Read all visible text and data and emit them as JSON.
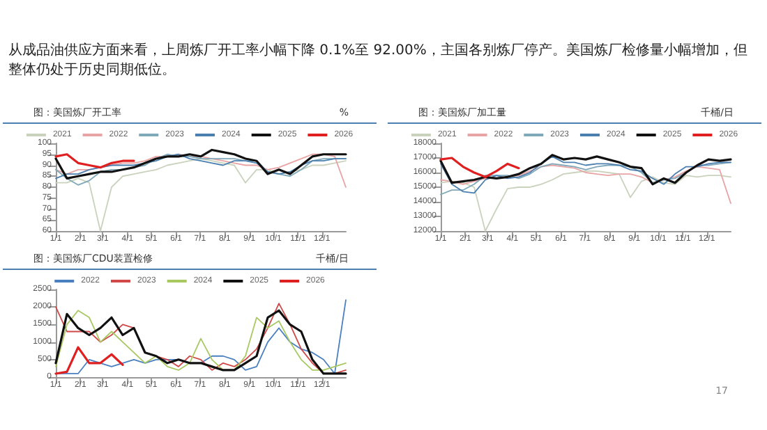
{
  "chart_data": [
    {
      "type": "line",
      "title": "图：美国炼厂开工率",
      "ylabel": "%",
      "annotations": [
        "从成品油供应方面来看，上周炼厂开工率小幅下降 0.1%至 92.00%，主国各别炼厂停产。美国炼厂检修量小幅增加，但整体仍处于历史同期低位。"
      ],
      "x": [
        "--01-01",
        "--01-15",
        "--01-29",
        "--02-12",
        "--02-26",
        "--03-12",
        "--03-26",
        "--04-09",
        "--04-23",
        "--05-07",
        "--05-21",
        "--06-04",
        "--06-18",
        "--07-02",
        "--07-16",
        "--07-30",
        "--08-13",
        "--08-27",
        "--09-10",
        "--09-24",
        "--10-08",
        "--10-22",
        "--11-05",
        "--11-19",
        "--12-03",
        "--12-17",
        "--12-31"
      ],
      "xlim": [
        "--01-01",
        "--12-31"
      ],
      "xticks": [
        {
          "value": "--01-01",
          "label": "1/1"
        },
        {
          "value": "--02-01",
          "label": "2/1"
        },
        {
          "value": "--03-01",
          "label": "3/1"
        },
        {
          "value": "--04-01",
          "label": "4/1"
        },
        {
          "value": "--05-01",
          "label": "5/1"
        },
        {
          "value": "--06-01",
          "label": "6/1"
        },
        {
          "value": "--07-01",
          "label": "7/1"
        },
        {
          "value": "--08-01",
          "label": "8/1"
        },
        {
          "value": "--09-01",
          "label": "9/1"
        },
        {
          "value": "--10-01",
          "label": "10/1"
        },
        {
          "value": "--11-01",
          "label": "11/1"
        },
        {
          "value": "--12-01",
          "label": "12/1"
        }
      ],
      "ylim": [
        60,
        100
      ],
      "yticks": [
        60,
        65,
        70,
        75,
        80,
        85,
        90,
        95,
        100
      ],
      "grid": false,
      "legend": "top",
      "marker": "none",
      "line_style": "solid",
      "series": [
        {
          "name": "2021",
          "color": "#c9d2bc",
          "values": [
            82,
            82,
            84,
            82,
            60,
            80,
            85,
            86,
            87,
            88,
            90,
            91,
            92,
            93,
            92,
            91,
            90,
            82,
            88,
            88,
            86,
            87,
            88,
            90,
            90,
            91,
            92
          ]
        },
        {
          "name": "2022",
          "color": "#e8a4a4",
          "values": [
            88,
            86,
            88,
            88,
            89,
            90,
            91,
            91,
            92,
            94,
            94,
            95,
            94,
            94,
            93,
            92,
            91,
            90,
            90,
            88,
            89,
            91,
            93,
            95,
            95,
            94,
            80
          ]
        },
        {
          "name": "2023",
          "color": "#7fa8b8",
          "values": [
            88,
            84,
            81,
            83,
            87,
            88,
            88,
            89,
            90,
            93,
            95,
            94,
            94,
            93,
            93,
            93,
            93,
            92,
            92,
            87,
            86,
            85,
            88,
            92,
            93,
            93,
            93
          ]
        },
        {
          "name": "2024",
          "color": "#4a7fb0",
          "values": [
            84,
            86,
            86,
            88,
            89,
            90,
            90,
            90,
            91,
            92,
            94,
            95,
            93,
            92,
            91,
            90,
            92,
            92,
            91,
            87,
            86,
            87,
            90,
            92,
            92,
            93,
            93
          ]
        },
        {
          "name": "2025",
          "color": "#111111",
          "values": [
            93,
            84,
            85,
            86,
            87,
            87,
            88,
            89,
            91,
            93,
            94,
            94,
            95,
            94,
            97,
            96,
            95,
            93,
            92,
            86,
            88,
            86,
            90,
            94,
            95,
            95,
            95
          ]
        },
        {
          "name": "2026",
          "color": "#e02020",
          "x": [
            "--01-01",
            "--01-15",
            "--01-29",
            "--02-12",
            "--02-26",
            "--03-12",
            "--03-26",
            "--04-09"
          ],
          "values": [
            94,
            95,
            91,
            90,
            89,
            91,
            92,
            92
          ]
        }
      ]
    },
    {
      "type": "line",
      "title": "图：美国炼厂加工量",
      "ylabel": "千桶/日",
      "x": [
        "--01-01",
        "--01-15",
        "--01-29",
        "--02-12",
        "--02-26",
        "--03-12",
        "--03-26",
        "--04-09",
        "--04-23",
        "--05-07",
        "--05-21",
        "--06-04",
        "--06-18",
        "--07-02",
        "--07-16",
        "--07-30",
        "--08-13",
        "--08-27",
        "--09-10",
        "--09-24",
        "--10-08",
        "--10-22",
        "--11-05",
        "--11-19",
        "--12-03",
        "--12-17",
        "--12-31"
      ],
      "xlim": [
        "--01-01",
        "--12-31"
      ],
      "xticks": [
        {
          "value": "--01-01",
          "label": "1/1"
        },
        {
          "value": "--02-01",
          "label": "2/1"
        },
        {
          "value": "--03-01",
          "label": "3/1"
        },
        {
          "value": "--04-01",
          "label": "4/1"
        },
        {
          "value": "--05-01",
          "label": "5/1"
        },
        {
          "value": "--06-01",
          "label": "6/1"
        },
        {
          "value": "--07-01",
          "label": "7/1"
        },
        {
          "value": "--08-01",
          "label": "8/1"
        },
        {
          "value": "--09-01",
          "label": "9/1"
        },
        {
          "value": "--10-01",
          "label": "10/1"
        },
        {
          "value": "--11-01",
          "label": "11/1"
        },
        {
          "value": "--12-01",
          "label": "12/1"
        }
      ],
      "ylim": [
        12000,
        18000
      ],
      "yticks": [
        12000,
        13000,
        14000,
        15000,
        16000,
        17000,
        18000
      ],
      "grid": false,
      "legend": "top",
      "marker": "none",
      "line_style": "solid",
      "series": [
        {
          "name": "2021",
          "color": "#c9d2bc",
          "values": [
            15300,
            15400,
            15300,
            15000,
            12000,
            13500,
            14900,
            15000,
            15000,
            15200,
            15500,
            15900,
            16000,
            16100,
            16100,
            16000,
            15900,
            14300,
            15400,
            15700,
            15300,
            15200,
            15800,
            15700,
            15800,
            15800,
            15700
          ]
        },
        {
          "name": "2022",
          "color": "#e8a4a4",
          "values": [
            15500,
            15400,
            15200,
            15400,
            15600,
            15600,
            15700,
            15800,
            16100,
            16400,
            16500,
            16400,
            16300,
            16000,
            15900,
            15800,
            15900,
            15900,
            15700,
            15300,
            15500,
            15700,
            16100,
            16400,
            16300,
            16200,
            13900
          ]
        },
        {
          "name": "2023",
          "color": "#7fa8b8",
          "values": [
            14500,
            14800,
            14800,
            15200,
            15800,
            15800,
            15800,
            15600,
            15900,
            16400,
            16600,
            16500,
            16400,
            16200,
            16400,
            16500,
            16500,
            16400,
            16000,
            15300,
            15500,
            15600,
            16000,
            16500,
            16500,
            16600,
            16700
          ]
        },
        {
          "name": "2024",
          "color": "#4a7fb0",
          "values": [
            16600,
            15200,
            14700,
            14600,
            15500,
            15800,
            15600,
            15700,
            16000,
            16600,
            17100,
            16700,
            16700,
            16500,
            16600,
            16600,
            16500,
            16200,
            16100,
            15600,
            15200,
            15900,
            16400,
            16400,
            16600,
            16700,
            16700
          ]
        },
        {
          "name": "2025",
          "color": "#111111",
          "values": [
            16800,
            15300,
            15400,
            15500,
            15700,
            15600,
            15700,
            15900,
            16300,
            16600,
            17200,
            16900,
            17000,
            16900,
            17100,
            16900,
            16700,
            16400,
            16300,
            15200,
            15600,
            15300,
            16000,
            16500,
            16900,
            16800,
            16900
          ]
        },
        {
          "name": "2026",
          "color": "#e02020",
          "x": [
            "--01-01",
            "--01-15",
            "--01-29",
            "--02-12",
            "--02-26",
            "--03-12",
            "--03-26",
            "--04-09"
          ],
          "values": [
            16900,
            17000,
            16400,
            16000,
            15700,
            16100,
            16600,
            16300
          ]
        }
      ]
    },
    {
      "type": "line",
      "title": "图：美国炼厂CDU装置检修",
      "ylabel": "千桶/日",
      "annotations": [
        "17"
      ],
      "x": [
        "--01-01",
        "--01-15",
        "--01-29",
        "--02-12",
        "--02-26",
        "--03-12",
        "--03-26",
        "--04-09",
        "--04-23",
        "--05-07",
        "--05-21",
        "--06-04",
        "--06-18",
        "--07-02",
        "--07-16",
        "--07-30",
        "--08-13",
        "--08-27",
        "--09-10",
        "--09-24",
        "--10-08",
        "--10-22",
        "--11-05",
        "--11-19",
        "--12-03",
        "--12-17",
        "--12-31"
      ],
      "xlim": [
        "--01-01",
        "--12-31"
      ],
      "xticks": [
        {
          "value": "--01-01",
          "label": "1/1"
        },
        {
          "value": "--02-01",
          "label": "2/1"
        },
        {
          "value": "--03-01",
          "label": "3/1"
        },
        {
          "value": "--04-01",
          "label": "4/1"
        },
        {
          "value": "--05-01",
          "label": "5/1"
        },
        {
          "value": "--06-01",
          "label": "6/1"
        },
        {
          "value": "--07-01",
          "label": "7/1"
        },
        {
          "value": "--08-01",
          "label": "8/1"
        },
        {
          "value": "--09-01",
          "label": "9/1"
        },
        {
          "value": "--10-01",
          "label": "10/1"
        },
        {
          "value": "--11-01",
          "label": "11/1"
        },
        {
          "value": "--12-01",
          "label": "12/1"
        }
      ],
      "ylim": [
        0,
        2500
      ],
      "yticks": [
        0,
        500,
        1000,
        1500,
        2000,
        2500
      ],
      "grid": false,
      "legend": "top",
      "marker": "none",
      "line_style": "solid",
      "series": [
        {
          "name": "2022",
          "color": "#4a7fc0",
          "values": [
            100,
            100,
            100,
            500,
            400,
            300,
            400,
            500,
            400,
            500,
            500,
            500,
            400,
            400,
            600,
            600,
            500,
            200,
            300,
            1000,
            1400,
            1000,
            800,
            700,
            500,
            100,
            2200
          ]
        },
        {
          "name": "2023",
          "color": "#d04848",
          "values": [
            2000,
            1300,
            1300,
            1300,
            1000,
            1200,
            1500,
            1400,
            700,
            600,
            500,
            300,
            600,
            500,
            200,
            400,
            300,
            500,
            800,
            1400,
            2100,
            1500,
            800,
            400,
            100,
            100,
            200
          ]
        },
        {
          "name": "2024",
          "color": "#a8c860",
          "values": [
            300,
            1500,
            1900,
            1700,
            1000,
            1300,
            1000,
            700,
            400,
            600,
            300,
            200,
            400,
            1100,
            500,
            200,
            200,
            600,
            1700,
            1400,
            1600,
            1000,
            500,
            200,
            200,
            300,
            400
          ]
        },
        {
          "name": "2025",
          "color": "#111111",
          "values": [
            400,
            1800,
            1400,
            1200,
            1400,
            1700,
            1200,
            1400,
            700,
            600,
            400,
            500,
            400,
            400,
            300,
            200,
            200,
            400,
            600,
            1700,
            1900,
            1500,
            1300,
            500,
            100,
            100,
            100
          ]
        },
        {
          "name": "2026",
          "color": "#e02020",
          "x": [
            "--01-01",
            "--01-15",
            "--01-29",
            "--02-12",
            "--02-26",
            "--03-12",
            "--03-26"
          ],
          "values": [
            100,
            150,
            850,
            400,
            400,
            650,
            350
          ]
        }
      ]
    }
  ]
}
